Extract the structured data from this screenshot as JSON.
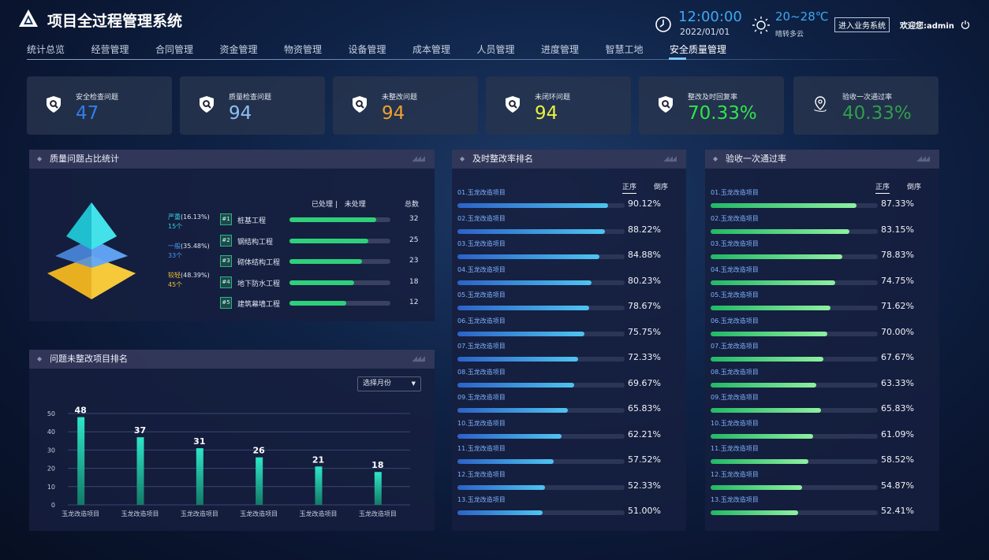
{
  "header": {
    "title": "项目全过程管理系统",
    "time": "12:00:00",
    "date": "2022/01/01",
    "temperature": "20~28℃",
    "weather": "晴转多云",
    "biz_button": "进入业务系统",
    "welcome": "欢迎您:admin"
  },
  "nav": {
    "items": [
      "统计总览",
      "经营管理",
      "合同管理",
      "资金管理",
      "物资管理",
      "设备管理",
      "成本管理",
      "人员管理",
      "进度管理",
      "智慧工地",
      "安全质量管理"
    ],
    "active": 10
  },
  "kpis": [
    {
      "label": "安全检查问题",
      "value": "47",
      "color": "#2f7fe8",
      "icon": "shield-search-icon"
    },
    {
      "label": "质量检查问题",
      "value": "94",
      "color": "#8cc0f0",
      "icon": "shield-search-icon"
    },
    {
      "label": "未整改问题",
      "value": "94",
      "color": "#f0a030",
      "icon": "shield-search-icon"
    },
    {
      "label": "未闭环问题",
      "value": "94",
      "color": "#e8f040",
      "icon": "shield-search-icon"
    },
    {
      "label": "整改及时回复率",
      "value": "70.33%",
      "color": "#2ee64a",
      "icon": "shield-search-icon"
    },
    {
      "label": "验收一次通过率",
      "value": "40.33%",
      "color": "#2f9e4a",
      "icon": "location-pin-icon"
    }
  ],
  "quality": {
    "title": "质量问题占比统计",
    "levels": [
      {
        "name": "严重",
        "pct": "(16.13%)",
        "count": "15个",
        "color": "#2fd4e0"
      },
      {
        "name": "一般",
        "pct": "(35.48%)",
        "count": "33个",
        "color": "#4a9af0"
      },
      {
        "name": "较轻",
        "pct": "(48.39%)",
        "count": "45个",
        "color": "#f4c030"
      }
    ],
    "col_done": "已处理",
    "col_undone": "未处理",
    "col_total": "总数",
    "rows": [
      {
        "rank": "#1",
        "name": "桩基工程",
        "total": "32",
        "ratio": 0.86
      },
      {
        "rank": "#2",
        "name": "钢结构工程",
        "total": "25",
        "ratio": 0.78
      },
      {
        "rank": "#3",
        "name": "砌体结构工程",
        "total": "23",
        "ratio": 0.72
      },
      {
        "rank": "#4",
        "name": "地下防水工程",
        "total": "18",
        "ratio": 0.64
      },
      {
        "rank": "#5",
        "name": "建筑幕墙工程",
        "total": "12",
        "ratio": 0.56
      }
    ]
  },
  "chart_data": {
    "type": "bar",
    "title": "问题未整改项目排名",
    "select": "选择月份",
    "categories": [
      "玉龙改造项目",
      "玉龙改造项目",
      "玉龙改造项目",
      "玉龙改造项目",
      "玉龙改造项目",
      "玉龙改造项目"
    ],
    "values": [
      48,
      37,
      31,
      26,
      21,
      18
    ],
    "yticks": [
      "0",
      "10",
      "20",
      "30",
      "40",
      "50"
    ],
    "ylim": [
      0,
      50
    ],
    "grid": true
  },
  "timely": {
    "title": "及时整改率排名",
    "sort_asc": "正序",
    "sort_desc": "倒序",
    "items": [
      {
        "name": "01.玉龙改造项目",
        "value": 90.12,
        "label": "90.12%"
      },
      {
        "name": "02.玉龙改造项目",
        "value": 88.22,
        "label": "88.22%"
      },
      {
        "name": "03.玉龙改造项目",
        "value": 84.88,
        "label": "84.88%"
      },
      {
        "name": "04.玉龙改造项目",
        "value": 80.23,
        "label": "80.23%"
      },
      {
        "name": "05.玉龙改造项目",
        "value": 78.67,
        "label": "78.67%"
      },
      {
        "name": "06.玉龙改造项目",
        "value": 75.75,
        "label": "75.75%"
      },
      {
        "name": "07.玉龙改造项目",
        "value": 72.33,
        "label": "72.33%"
      },
      {
        "name": "08.玉龙改造项目",
        "value": 69.67,
        "label": "69.67%"
      },
      {
        "name": "09.玉龙改造项目",
        "value": 65.83,
        "label": "65.83%"
      },
      {
        "name": "10.玉龙改造项目",
        "value": 62.21,
        "label": "62.21%"
      },
      {
        "name": "11.玉龙改造项目",
        "value": 57.52,
        "label": "57.52%"
      },
      {
        "name": "12.玉龙改造项目",
        "value": 52.33,
        "label": "52.33%"
      },
      {
        "name": "13.玉龙改造项目",
        "value": 51.0,
        "label": "51.00%"
      }
    ]
  },
  "acceptance": {
    "title": "验收一次通过率",
    "sort_asc": "正序",
    "sort_desc": "倒序",
    "items": [
      {
        "name": "01.玉龙改造项目",
        "value": 87.33,
        "label": "87.33%"
      },
      {
        "name": "02.玉龙改造项目",
        "value": 83.15,
        "label": "83.15%"
      },
      {
        "name": "03.玉龙改造项目",
        "value": 78.83,
        "label": "78.83%"
      },
      {
        "name": "04.玉龙改造项目",
        "value": 74.75,
        "label": "74.75%"
      },
      {
        "name": "05.玉龙改造项目",
        "value": 71.62,
        "label": "71.62%"
      },
      {
        "name": "06.玉龙改造项目",
        "value": 70.0,
        "label": "70.00%"
      },
      {
        "name": "07.玉龙改造项目",
        "value": 67.67,
        "label": "67.67%"
      },
      {
        "name": "08.玉龙改造项目",
        "value": 63.33,
        "label": "63.33%"
      },
      {
        "name": "09.玉龙改造项目",
        "value": 65.83,
        "label": "65.83%"
      },
      {
        "name": "10.玉龙改造项目",
        "value": 61.09,
        "label": "61.09%"
      },
      {
        "name": "11.玉龙改造项目",
        "value": 58.52,
        "label": "58.52%"
      },
      {
        "name": "12.玉龙改造项目",
        "value": 54.87,
        "label": "54.87%"
      },
      {
        "name": "13.玉龙改造项目",
        "value": 52.41,
        "label": "52.41%"
      }
    ]
  }
}
